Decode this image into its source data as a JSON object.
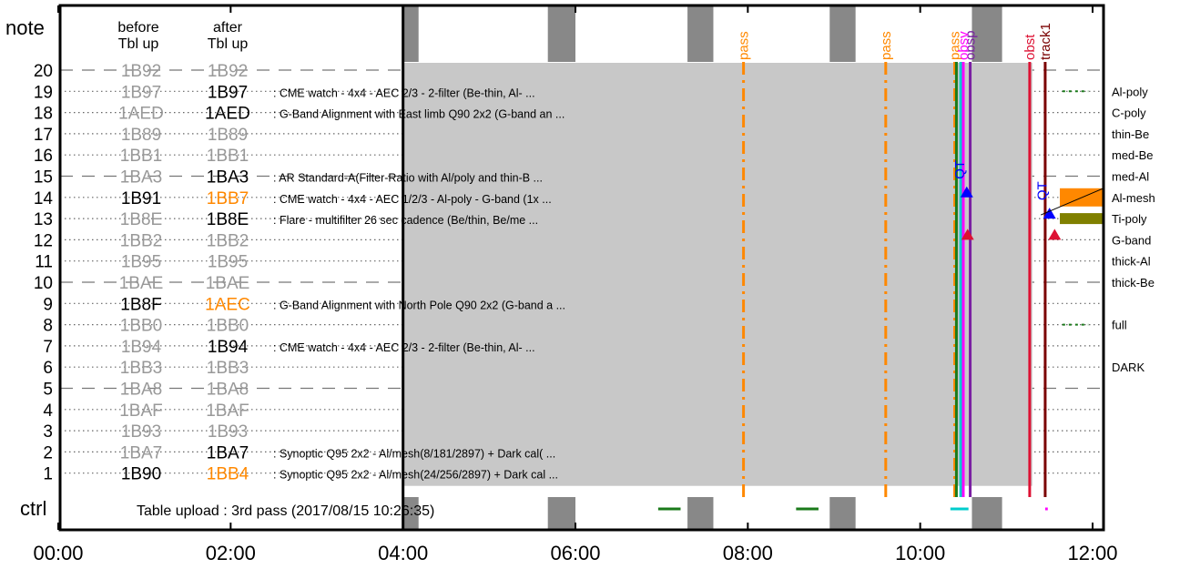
{
  "header": {
    "note_label": "note",
    "before_label": "before\nTbl up",
    "after_label": "after\nTbl up",
    "ctrl_label": "ctrl"
  },
  "upload_status": "Table upload : 3rd pass (2017/08/15 10:26:35)",
  "colors": {
    "grey_text": "#999999",
    "orange": "#ff8800",
    "gray_block": "#888888",
    "panel_gray": "#c8c8c8",
    "green": "#1a7a1a",
    "olive": "#808000",
    "purple": "#7a1fa2",
    "red": "#dd1133",
    "darkred": "#7a0000",
    "blue": "#0000ff",
    "cyan": "#00cccc",
    "magenta": "#ff00ff"
  },
  "chart_data": {
    "type": "timeline",
    "x_tick_labels": [
      "00:00",
      "02:00",
      "04:00",
      "06:00",
      "08:00",
      "10:00",
      "12:00"
    ],
    "x_range_hours": [
      0,
      12
    ],
    "rows": [
      {
        "n": "20",
        "before": "1B92",
        "after": "1B92",
        "bc": "grey",
        "ac": "grey",
        "desc": "",
        "dashed": true
      },
      {
        "n": "19",
        "before": "1B97",
        "after": "1B97",
        "bc": "grey",
        "ac": "black",
        "desc": ": CME watch - 4x4 - AEC 2/3 - 2-filter (Be-thin, Al- ...",
        "dashed": false
      },
      {
        "n": "18",
        "before": "1AED",
        "after": "1AED",
        "bc": "grey",
        "ac": "black",
        "desc": ": G-Band Alignment with East limb Q90 2x2 (G-band an ...",
        "dashed": false
      },
      {
        "n": "17",
        "before": "1B89",
        "after": "1B89",
        "bc": "grey",
        "ac": "grey",
        "desc": "",
        "dashed": false
      },
      {
        "n": "16",
        "before": "1BB1",
        "after": "1BB1",
        "bc": "grey",
        "ac": "grey",
        "desc": "",
        "dashed": false
      },
      {
        "n": "15",
        "before": "1BA3",
        "after": "1BA3",
        "bc": "grey",
        "ac": "black",
        "desc": ": AR Standard-A(Filter-Ratio with Al/poly and thin-B ...",
        "dashed": true
      },
      {
        "n": "14",
        "before": "1B91",
        "after": "1BB7",
        "bc": "black",
        "ac": "orange",
        "desc": ": CME watch - 4x4 - AEC 1/2/3 - Al-poly - G-band (1x ...",
        "dashed": false
      },
      {
        "n": "13",
        "before": "1B8E",
        "after": "1B8E",
        "bc": "grey",
        "ac": "black",
        "desc": ": Flare - multifilter 26 sec cadence (Be/thin, Be/me ...",
        "dashed": false
      },
      {
        "n": "12",
        "before": "1BB2",
        "after": "1BB2",
        "bc": "grey",
        "ac": "grey",
        "desc": "",
        "dashed": false
      },
      {
        "n": "11",
        "before": "1B95",
        "after": "1B95",
        "bc": "grey",
        "ac": "grey",
        "desc": "",
        "dashed": false
      },
      {
        "n": "10",
        "before": "1BAE",
        "after": "1BAE",
        "bc": "grey",
        "ac": "grey",
        "desc": "",
        "dashed": true
      },
      {
        "n": "9",
        "before": "1B8F",
        "after": "1AEC",
        "bc": "black",
        "ac": "orange",
        "desc": ": G-Band Alignment with North Pole Q90 2x2 (G-band a ...",
        "dashed": false
      },
      {
        "n": "8",
        "before": "1BB0",
        "after": "1BB0",
        "bc": "grey",
        "ac": "grey",
        "desc": "",
        "dashed": false
      },
      {
        "n": "7",
        "before": "1B94",
        "after": "1B94",
        "bc": "grey",
        "ac": "black",
        "desc": ": CME watch - 4x4 - AEC 2/3 - 2-filter (Be-thin, Al- ...",
        "dashed": false
      },
      {
        "n": "6",
        "before": "1BB3",
        "after": "1BB3",
        "bc": "grey",
        "ac": "grey",
        "desc": "",
        "dashed": false
      },
      {
        "n": "5",
        "before": "1BA8",
        "after": "1BA8",
        "bc": "grey",
        "ac": "grey",
        "desc": "",
        "dashed": true
      },
      {
        "n": "4",
        "before": "1BAF",
        "after": "1BAF",
        "bc": "grey",
        "ac": "grey",
        "desc": "",
        "dashed": false
      },
      {
        "n": "3",
        "before": "1B93",
        "after": "1B93",
        "bc": "grey",
        "ac": "grey",
        "desc": "",
        "dashed": false
      },
      {
        "n": "2",
        "before": "1BA7",
        "after": "1BA7",
        "bc": "grey",
        "ac": "black",
        "desc": ": Synoptic Q95 2x2 - Al/mesh(8/181/2897) + Dark cal( ...",
        "dashed": false
      },
      {
        "n": "1",
        "before": "1B90",
        "after": "1BB4",
        "bc": "black",
        "ac": "orange",
        "desc": ": Synoptic Q95 2x2 - Al/mesh(24/256/2897) + Dark cal ...",
        "dashed": false
      }
    ],
    "filters": [
      {
        "row": "19",
        "label": "Al-poly"
      },
      {
        "row": "18",
        "label": "C-poly"
      },
      {
        "row": "17",
        "label": "thin-Be"
      },
      {
        "row": "16",
        "label": "med-Be"
      },
      {
        "row": "15",
        "label": "med-Al"
      },
      {
        "row": "14",
        "label": "Al-mesh"
      },
      {
        "row": "13",
        "label": "Ti-poly"
      },
      {
        "row": "12",
        "label": "G-band"
      },
      {
        "row": "11",
        "label": "thick-Al"
      },
      {
        "row": "10",
        "label": "thick-Be"
      },
      {
        "row": "8",
        "label": "full"
      },
      {
        "row": "6",
        "label": "DARK"
      }
    ],
    "uploaded_period_hours": [
      4.0,
      11.3
    ],
    "gray_blocks_hours": [
      [
        4.0,
        4.18
      ],
      [
        5.68,
        6.0
      ],
      [
        7.3,
        7.6
      ],
      [
        8.95,
        9.25
      ],
      [
        10.6,
        10.95
      ]
    ],
    "pass_markers": [
      {
        "hour": 7.95,
        "label": "pass",
        "color": "orange"
      },
      {
        "hour": 9.6,
        "label": "pass",
        "color": "orange"
      },
      {
        "hour": 10.4,
        "label": "pass",
        "color": "orange"
      }
    ],
    "op_lines": [
      {
        "hour": 10.42,
        "label": "",
        "color": "green"
      },
      {
        "hour": 10.47,
        "label": "",
        "color": "cyan"
      },
      {
        "hour": 10.58,
        "label": "obsp",
        "color": "purple"
      },
      {
        "hour": 10.5,
        "label": "obsv",
        "color": "magenta"
      },
      {
        "hour": 11.27,
        "label": "obst",
        "color": "red"
      },
      {
        "hour": 11.45,
        "label": "track1",
        "color": "darkred"
      }
    ],
    "qt_markers": [
      {
        "hour": 10.54,
        "label": "QT",
        "color": "blue",
        "row": "14"
      },
      {
        "hour": 11.5,
        "label": "QT",
        "color": "blue",
        "row": "13"
      }
    ],
    "fl_markers": [
      {
        "hour": 10.55,
        "label": "FL",
        "color": "red",
        "row": "12"
      },
      {
        "hour": 11.56,
        "label": "FL",
        "color": "red",
        "row": "12"
      }
    ],
    "ctrl_segments_hours": [
      [
        6.96,
        7.22
      ],
      [
        8.56,
        8.82
      ],
      [
        10.35,
        10.56
      ],
      [
        11.45,
        11.48
      ]
    ]
  }
}
